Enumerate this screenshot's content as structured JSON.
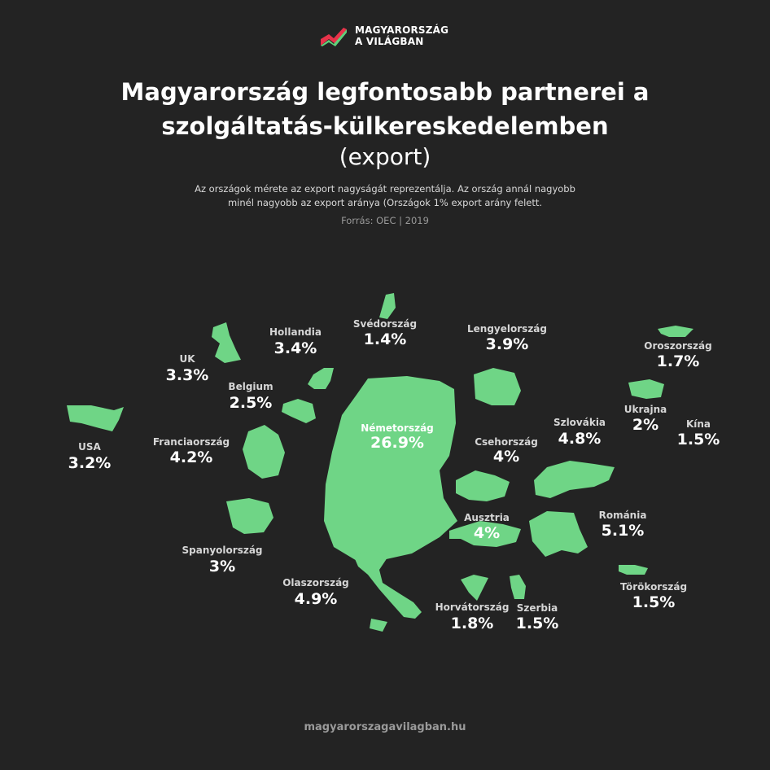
{
  "logo": {
    "line1": "MAGYARORSZÁG",
    "line2": "A VILÁGBAN",
    "colors": [
      "#e8334a",
      "#5fd07a"
    ]
  },
  "header": {
    "title_line1": "Magyarország legfontosabb partnerei a",
    "title_line2": "szolgáltatás-külkereskedelemben",
    "subtitle": "(export)",
    "desc_line1": "Az országok mérete az export nagyságát reprezentálja. Az ország annál nagyobb",
    "desc_line2": "minél nagyobb az export aránya (Országok 1% export arány felett.",
    "source": "Forrás: OEC | 2019"
  },
  "footer": {
    "url": "magyarorszagavilagban.hu"
  },
  "colors": {
    "shape": "#6fd586",
    "background": "#232323",
    "label": "#ffffff",
    "label_muted": "#d6d6d6"
  },
  "chart_data": {
    "type": "other",
    "title": "Magyarország legfontosabb partnerei a szolgáltatás-külkereskedelemben (export)",
    "unit": "%",
    "countries": [
      {
        "name": "Németország",
        "label": "26.9%",
        "value": 26.9
      },
      {
        "name": "Románia",
        "label": "5.1%",
        "value": 5.1
      },
      {
        "name": "Olaszország",
        "label": "4.9%",
        "value": 4.9
      },
      {
        "name": "Szlovákia",
        "label": "4.8%",
        "value": 4.8
      },
      {
        "name": "Franciaország",
        "label": "4.2%",
        "value": 4.2
      },
      {
        "name": "Csehország",
        "label": "4%",
        "value": 4
      },
      {
        "name": "Ausztria",
        "label": "4%",
        "value": 4
      },
      {
        "name": "Lengyelország",
        "label": "3.9%",
        "value": 3.9
      },
      {
        "name": "Hollandia",
        "label": "3.4%",
        "value": 3.4
      },
      {
        "name": "UK",
        "label": "3.3%",
        "value": 3.3
      },
      {
        "name": "USA",
        "label": "3.2%",
        "value": 3.2
      },
      {
        "name": "Spanyolország",
        "label": "3%",
        "value": 3
      },
      {
        "name": "Belgium",
        "label": "2.5%",
        "value": 2.5
      },
      {
        "name": "Ukrajna",
        "label": "2%",
        "value": 2
      },
      {
        "name": "Horvátország",
        "label": "1.8%",
        "value": 1.8
      },
      {
        "name": "Oroszország",
        "label": "1.7%",
        "value": 1.7
      },
      {
        "name": "Kína",
        "label": "1.5%",
        "value": 1.5
      },
      {
        "name": "Szerbia",
        "label": "1.5%",
        "value": 1.5
      },
      {
        "name": "Törökország",
        "label": "1.5%",
        "value": 1.5
      },
      {
        "name": "Svédország",
        "label": "1.4%",
        "value": 1.4
      }
    ]
  }
}
